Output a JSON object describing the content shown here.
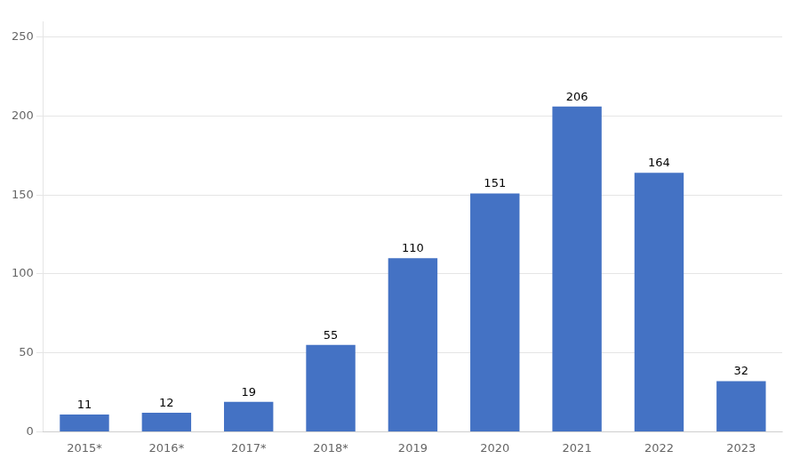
{
  "chart_data": {
    "type": "bar",
    "categories": [
      "2015*",
      "2016*",
      "2017*",
      "2018*",
      "2019",
      "2020",
      "2021",
      "2022",
      "2023"
    ],
    "values": [
      11,
      12,
      19,
      55,
      110,
      151,
      206,
      164,
      32
    ],
    "color": "#4472C4",
    "ylim": [
      0,
      260
    ],
    "yticks": [
      0,
      50,
      100,
      150,
      200,
      250
    ],
    "grid": true,
    "data_labels": true
  }
}
